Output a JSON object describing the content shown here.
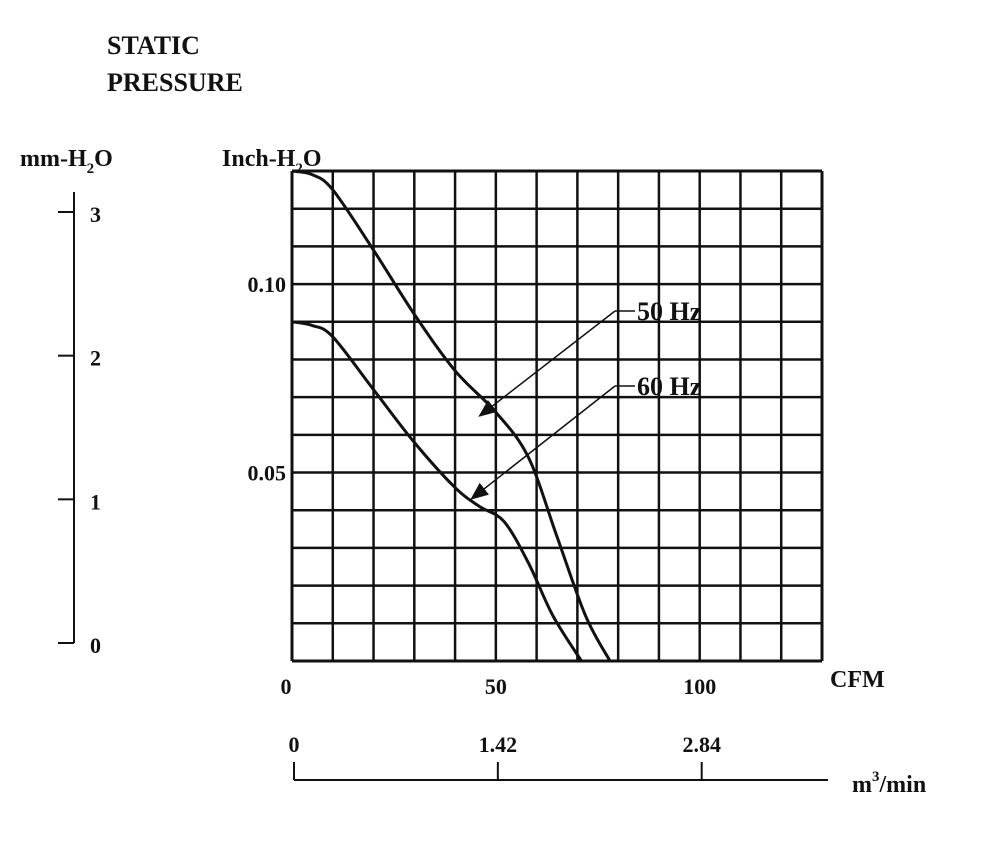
{
  "chart_data": {
    "type": "line",
    "title_lines": [
      "STATIC",
      "PRESSURE"
    ],
    "left_axis": {
      "label_main": "mm-H",
      "label_sub": "2",
      "label_tail": "O",
      "ticks": [
        "0",
        "1",
        "2",
        "3"
      ],
      "tick_values": [
        0,
        1,
        2,
        3
      ]
    },
    "y_axis": {
      "label_main": "Inch-H",
      "label_sub": "2",
      "label_tail": "O",
      "ticks": [
        "0.05",
        "0.10"
      ],
      "tick_values": [
        0.05,
        0.1
      ],
      "range": [
        0,
        0.13
      ]
    },
    "x_axis": {
      "label": "CFM",
      "ticks": [
        "0",
        "50",
        "100"
      ],
      "tick_values": [
        0,
        50,
        100
      ],
      "range": [
        0,
        130
      ]
    },
    "x2_axis": {
      "label_main": "m",
      "label_sup": "3",
      "label_tail": "/min",
      "ticks": [
        "0",
        "1.42",
        "2.84"
      ],
      "tick_cfm": [
        0,
        50,
        100
      ]
    },
    "grid": true,
    "grid_columns": 13,
    "grid_rows": 13,
    "series": [
      {
        "name": "50 Hz",
        "x": [
          0,
          5,
          10,
          20,
          30,
          40,
          50,
          58,
          65,
          72,
          78
        ],
        "y": [
          0.13,
          0.129,
          0.125,
          0.109,
          0.092,
          0.077,
          0.066,
          0.054,
          0.033,
          0.012,
          0.0
        ]
      },
      {
        "name": "60 Hz",
        "x": [
          0,
          5,
          10,
          20,
          30,
          40,
          46,
          52,
          58,
          64,
          71
        ],
        "y": [
          0.09,
          0.089,
          0.086,
          0.072,
          0.058,
          0.046,
          0.041,
          0.037,
          0.026,
          0.012,
          0.0
        ]
      }
    ],
    "annotations": [
      {
        "text": "50 Hz",
        "series": "50 Hz",
        "arrow_to": [
          46,
          0.065
        ]
      },
      {
        "text": "60 Hz",
        "series": "60 Hz",
        "arrow_to": [
          44,
          0.043
        ]
      }
    ]
  }
}
